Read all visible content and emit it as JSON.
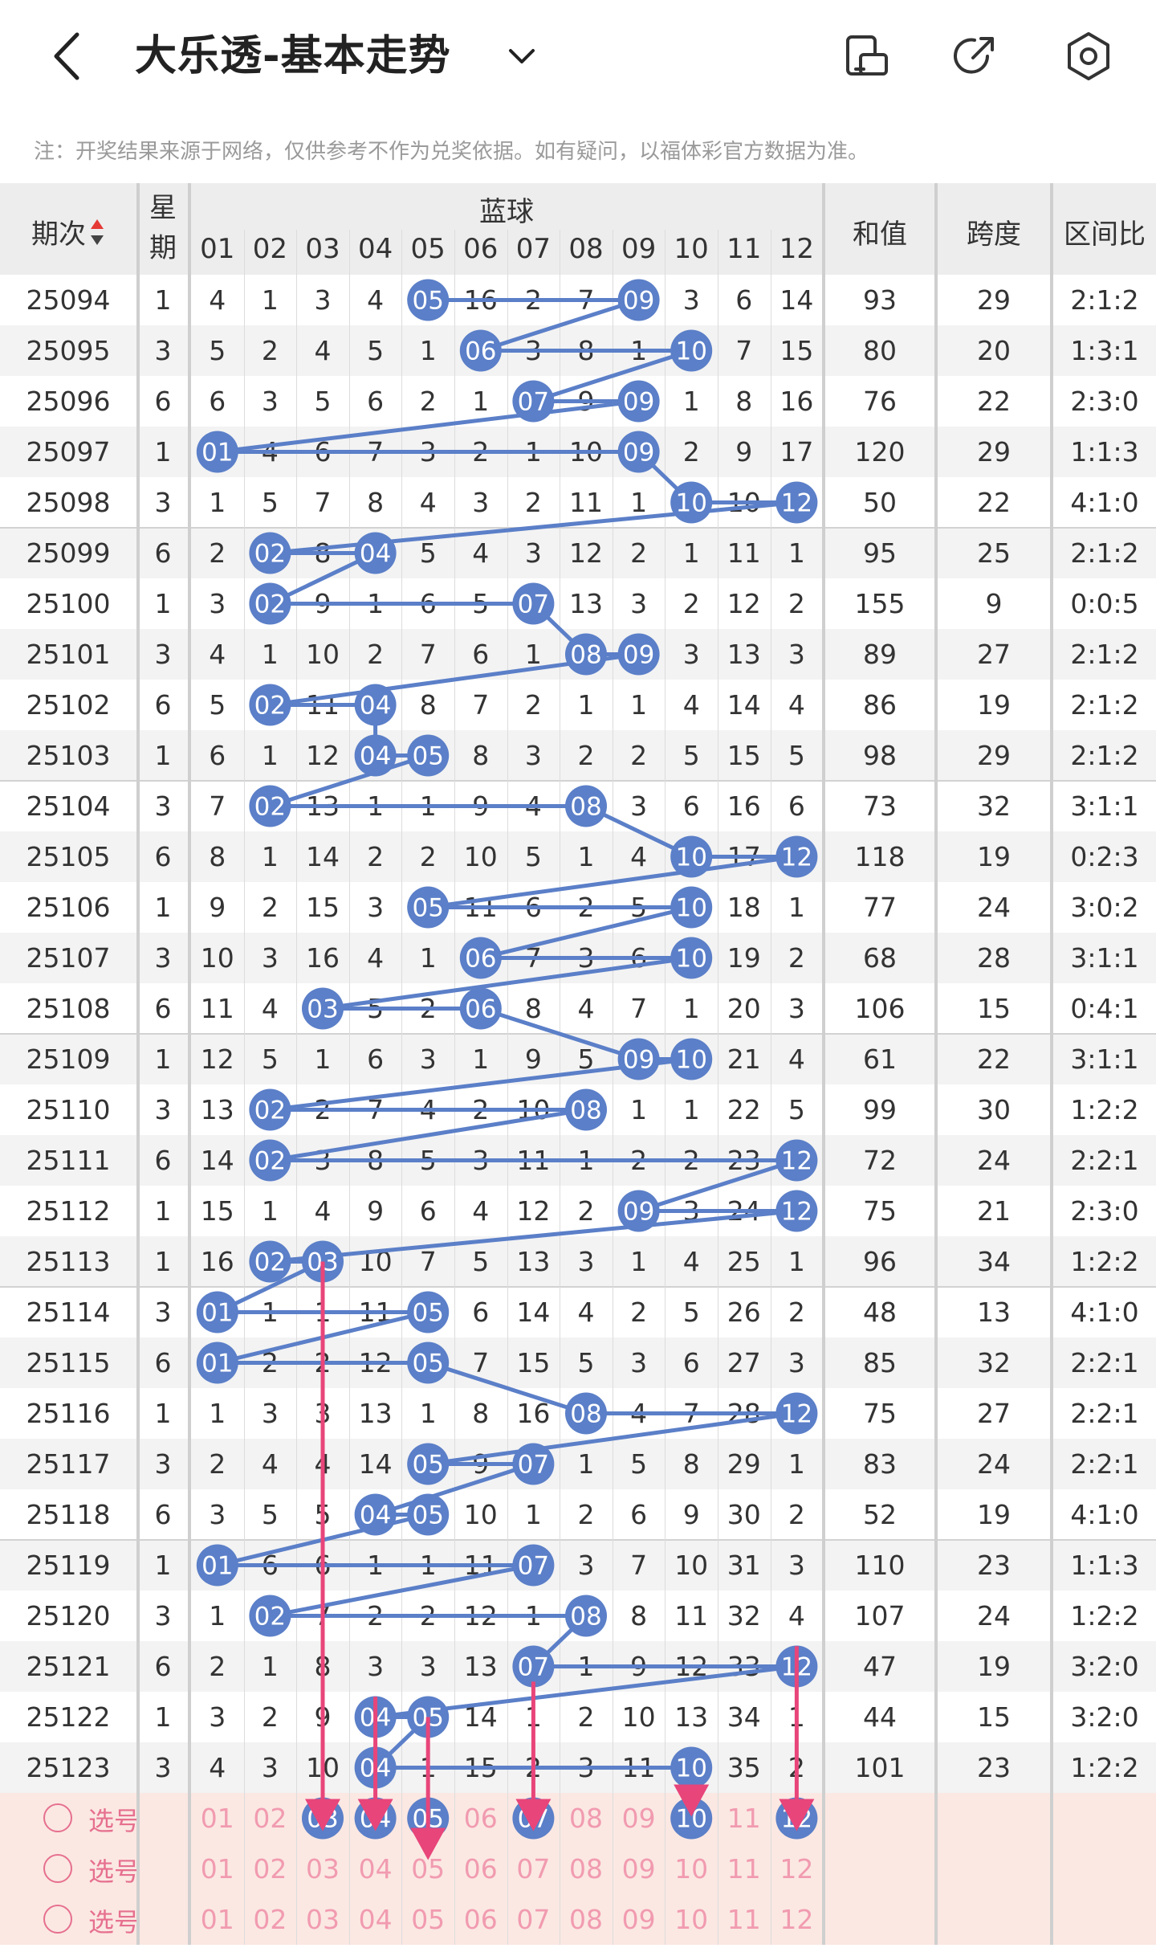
{
  "header": {
    "title": "大乐透-基本走势",
    "icons": [
      "back-icon",
      "chevron-down-icon",
      "phone-rotate-icon",
      "share-icon",
      "settings-icon"
    ]
  },
  "notice": "注：开奖结果来源于网络，仅供参考不作为兑奖依据。如有疑问，以福体彩官方数据为准。",
  "table": {
    "col_period": "期次",
    "col_weekday": "星期",
    "col_blue": "蓝球",
    "col_sum": "和值",
    "col_span": "跨度",
    "col_ratio": "区间比",
    "blue_numbers": [
      "01",
      "02",
      "03",
      "04",
      "05",
      "06",
      "07",
      "08",
      "09",
      "10",
      "11",
      "12"
    ],
    "rows": [
      {
        "period": "25094",
        "weekday": "1",
        "cells": [
          "4",
          "1",
          "3",
          "4",
          "05",
          "16",
          "2",
          "7",
          "09",
          "3",
          "6",
          "14"
        ],
        "sum": "93",
        "span": "29",
        "ratio": "2:1:2",
        "hits": [
          5,
          9
        ]
      },
      {
        "period": "25095",
        "weekday": "3",
        "cells": [
          "5",
          "2",
          "4",
          "5",
          "1",
          "06",
          "3",
          "8",
          "1",
          "10",
          "7",
          "15"
        ],
        "sum": "80",
        "span": "20",
        "ratio": "1:3:1",
        "hits": [
          6,
          10
        ]
      },
      {
        "period": "25096",
        "weekday": "6",
        "cells": [
          "6",
          "3",
          "5",
          "6",
          "2",
          "1",
          "07",
          "9",
          "09",
          "1",
          "8",
          "16"
        ],
        "sum": "76",
        "span": "22",
        "ratio": "2:3:0",
        "hits": [
          7,
          9
        ]
      },
      {
        "period": "25097",
        "weekday": "1",
        "cells": [
          "01",
          "4",
          "6",
          "7",
          "3",
          "2",
          "1",
          "10",
          "09",
          "2",
          "9",
          "17"
        ],
        "sum": "120",
        "span": "29",
        "ratio": "1:1:3",
        "hits": [
          1,
          9
        ]
      },
      {
        "period": "25098",
        "weekday": "3",
        "cells": [
          "1",
          "5",
          "7",
          "8",
          "4",
          "3",
          "2",
          "11",
          "1",
          "10",
          "10",
          "12"
        ],
        "sum": "50",
        "span": "22",
        "ratio": "4:1:0",
        "hits": [
          10,
          12
        ]
      },
      {
        "period": "25099",
        "weekday": "6",
        "cells": [
          "2",
          "02",
          "8",
          "04",
          "5",
          "4",
          "3",
          "12",
          "2",
          "1",
          "11",
          "1"
        ],
        "sum": "95",
        "span": "25",
        "ratio": "2:1:2",
        "hits": [
          2,
          4
        ]
      },
      {
        "period": "25100",
        "weekday": "1",
        "cells": [
          "3",
          "02",
          "9",
          "1",
          "6",
          "5",
          "07",
          "13",
          "3",
          "2",
          "12",
          "2"
        ],
        "sum": "155",
        "span": "9",
        "ratio": "0:0:5",
        "hits": [
          2,
          7
        ]
      },
      {
        "period": "25101",
        "weekday": "3",
        "cells": [
          "4",
          "1",
          "10",
          "2",
          "7",
          "6",
          "1",
          "08",
          "09",
          "3",
          "13",
          "3"
        ],
        "sum": "89",
        "span": "27",
        "ratio": "2:1:2",
        "hits": [
          8,
          9
        ]
      },
      {
        "period": "25102",
        "weekday": "6",
        "cells": [
          "5",
          "02",
          "11",
          "04",
          "8",
          "7",
          "2",
          "1",
          "1",
          "4",
          "14",
          "4"
        ],
        "sum": "86",
        "span": "19",
        "ratio": "2:1:2",
        "hits": [
          2,
          4
        ]
      },
      {
        "period": "25103",
        "weekday": "1",
        "cells": [
          "6",
          "1",
          "12",
          "04",
          "05",
          "8",
          "3",
          "2",
          "2",
          "5",
          "15",
          "5"
        ],
        "sum": "98",
        "span": "29",
        "ratio": "2:1:2",
        "hits": [
          4,
          5
        ]
      },
      {
        "period": "25104",
        "weekday": "3",
        "cells": [
          "7",
          "02",
          "13",
          "1",
          "1",
          "9",
          "4",
          "08",
          "3",
          "6",
          "16",
          "6"
        ],
        "sum": "73",
        "span": "32",
        "ratio": "3:1:1",
        "hits": [
          2,
          8
        ]
      },
      {
        "period": "25105",
        "weekday": "6",
        "cells": [
          "8",
          "1",
          "14",
          "2",
          "2",
          "10",
          "5",
          "1",
          "4",
          "10",
          "17",
          "12"
        ],
        "sum": "118",
        "span": "19",
        "ratio": "0:2:3",
        "hits": [
          10,
          12
        ]
      },
      {
        "period": "25106",
        "weekday": "1",
        "cells": [
          "9",
          "2",
          "15",
          "3",
          "05",
          "11",
          "6",
          "2",
          "5",
          "10",
          "18",
          "1"
        ],
        "sum": "77",
        "span": "24",
        "ratio": "3:0:2",
        "hits": [
          5,
          10
        ]
      },
      {
        "period": "25107",
        "weekday": "3",
        "cells": [
          "10",
          "3",
          "16",
          "4",
          "1",
          "06",
          "7",
          "3",
          "6",
          "10",
          "19",
          "2"
        ],
        "sum": "68",
        "span": "28",
        "ratio": "3:1:1",
        "hits": [
          6,
          10
        ]
      },
      {
        "period": "25108",
        "weekday": "6",
        "cells": [
          "11",
          "4",
          "03",
          "5",
          "2",
          "06",
          "8",
          "4",
          "7",
          "1",
          "20",
          "3"
        ],
        "sum": "106",
        "span": "15",
        "ratio": "0:4:1",
        "hits": [
          3,
          6
        ]
      },
      {
        "period": "25109",
        "weekday": "1",
        "cells": [
          "12",
          "5",
          "1",
          "6",
          "3",
          "1",
          "9",
          "5",
          "09",
          "10",
          "21",
          "4"
        ],
        "sum": "61",
        "span": "22",
        "ratio": "3:1:1",
        "hits": [
          9,
          10
        ]
      },
      {
        "period": "25110",
        "weekday": "3",
        "cells": [
          "13",
          "02",
          "2",
          "7",
          "4",
          "2",
          "10",
          "08",
          "1",
          "1",
          "22",
          "5"
        ],
        "sum": "99",
        "span": "30",
        "ratio": "1:2:2",
        "hits": [
          2,
          8
        ]
      },
      {
        "period": "25111",
        "weekday": "6",
        "cells": [
          "14",
          "02",
          "3",
          "8",
          "5",
          "3",
          "11",
          "1",
          "2",
          "2",
          "23",
          "12"
        ],
        "sum": "72",
        "span": "24",
        "ratio": "2:2:1",
        "hits": [
          2,
          12
        ]
      },
      {
        "period": "25112",
        "weekday": "1",
        "cells": [
          "15",
          "1",
          "4",
          "9",
          "6",
          "4",
          "12",
          "2",
          "09",
          "3",
          "24",
          "12"
        ],
        "sum": "75",
        "span": "21",
        "ratio": "2:3:0",
        "hits": [
          9,
          12
        ]
      },
      {
        "period": "25113",
        "weekday": "1",
        "cells": [
          "16",
          "02",
          "03",
          "10",
          "7",
          "5",
          "13",
          "3",
          "1",
          "4",
          "25",
          "1"
        ],
        "sum": "96",
        "span": "34",
        "ratio": "1:2:2",
        "hits": [
          2,
          3
        ]
      },
      {
        "period": "25114",
        "weekday": "3",
        "cells": [
          "01",
          "1",
          "1",
          "11",
          "05",
          "6",
          "14",
          "4",
          "2",
          "5",
          "26",
          "2"
        ],
        "sum": "48",
        "span": "13",
        "ratio": "4:1:0",
        "hits": [
          1,
          5
        ]
      },
      {
        "period": "25115",
        "weekday": "6",
        "cells": [
          "01",
          "2",
          "2",
          "12",
          "05",
          "7",
          "15",
          "5",
          "3",
          "6",
          "27",
          "3"
        ],
        "sum": "85",
        "span": "32",
        "ratio": "2:2:1",
        "hits": [
          1,
          5
        ]
      },
      {
        "period": "25116",
        "weekday": "1",
        "cells": [
          "1",
          "3",
          "3",
          "13",
          "1",
          "8",
          "16",
          "08",
          "4",
          "7",
          "28",
          "12"
        ],
        "sum": "75",
        "span": "27",
        "ratio": "2:2:1",
        "hits": [
          8,
          12
        ]
      },
      {
        "period": "25117",
        "weekday": "3",
        "cells": [
          "2",
          "4",
          "4",
          "14",
          "05",
          "9",
          "07",
          "1",
          "5",
          "8",
          "29",
          "1"
        ],
        "sum": "83",
        "span": "24",
        "ratio": "2:2:1",
        "hits": [
          5,
          7
        ]
      },
      {
        "period": "25118",
        "weekday": "6",
        "cells": [
          "3",
          "5",
          "5",
          "04",
          "05",
          "10",
          "1",
          "2",
          "6",
          "9",
          "30",
          "2"
        ],
        "sum": "52",
        "span": "19",
        "ratio": "4:1:0",
        "hits": [
          4,
          5
        ]
      },
      {
        "period": "25119",
        "weekday": "1",
        "cells": [
          "01",
          "6",
          "6",
          "1",
          "1",
          "11",
          "07",
          "3",
          "7",
          "10",
          "31",
          "3"
        ],
        "sum": "110",
        "span": "23",
        "ratio": "1:1:3",
        "hits": [
          1,
          7
        ]
      },
      {
        "period": "25120",
        "weekday": "3",
        "cells": [
          "1",
          "02",
          "7",
          "2",
          "2",
          "12",
          "1",
          "08",
          "8",
          "11",
          "32",
          "4"
        ],
        "sum": "107",
        "span": "24",
        "ratio": "1:2:2",
        "hits": [
          2,
          8
        ]
      },
      {
        "period": "25121",
        "weekday": "6",
        "cells": [
          "2",
          "1",
          "8",
          "3",
          "3",
          "13",
          "07",
          "1",
          "9",
          "12",
          "33",
          "12"
        ],
        "sum": "47",
        "span": "19",
        "ratio": "3:2:0",
        "hits": [
          7,
          12
        ]
      },
      {
        "period": "25122",
        "weekday": "1",
        "cells": [
          "3",
          "2",
          "9",
          "04",
          "05",
          "14",
          "1",
          "2",
          "10",
          "13",
          "34",
          "1"
        ],
        "sum": "44",
        "span": "15",
        "ratio": "3:2:0",
        "hits": [
          4,
          5
        ]
      },
      {
        "period": "25123",
        "weekday": "3",
        "cells": [
          "4",
          "3",
          "10",
          "04",
          "1",
          "15",
          "2",
          "3",
          "11",
          "10",
          "35",
          "2"
        ],
        "sum": "101",
        "span": "23",
        "ratio": "1:2:2",
        "hits": [
          4,
          10
        ]
      }
    ]
  },
  "selection": {
    "rows": [
      {
        "label": "选号",
        "selected": [
          3,
          4,
          5,
          7,
          10,
          12
        ]
      },
      {
        "label": "选号",
        "selected": []
      },
      {
        "label": "选号",
        "selected": []
      }
    ],
    "arrows": [
      [
        3,
        3
      ],
      [
        4,
        4
      ],
      [
        5,
        5
      ],
      [
        7,
        7
      ],
      [
        10,
        10
      ],
      [
        12,
        12
      ]
    ]
  },
  "colors": {
    "ball": "#5b7fc8",
    "line": "#5b7fc8",
    "arrow": "#e8457a",
    "selection_bg": "#fbe8e3",
    "selection_text": "#f19bb0"
  }
}
